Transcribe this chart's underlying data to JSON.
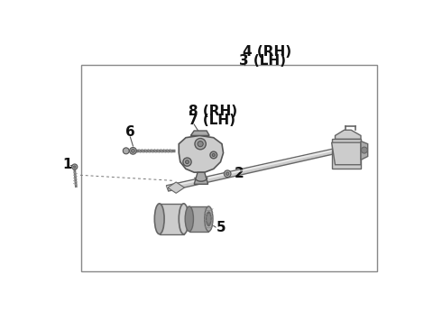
{
  "bg_color": "#ffffff",
  "box_bg": "#ffffff",
  "lc": "#555555",
  "label_4rh": "4 (RH)",
  "label_3lh": "3 (LH)",
  "label_8rh": "8 (RH)",
  "label_7lh": "7 (LH)",
  "label_1": "1",
  "label_2": "2",
  "label_5": "5",
  "label_6": "6",
  "fs": 10,
  "fs_bold": 11
}
